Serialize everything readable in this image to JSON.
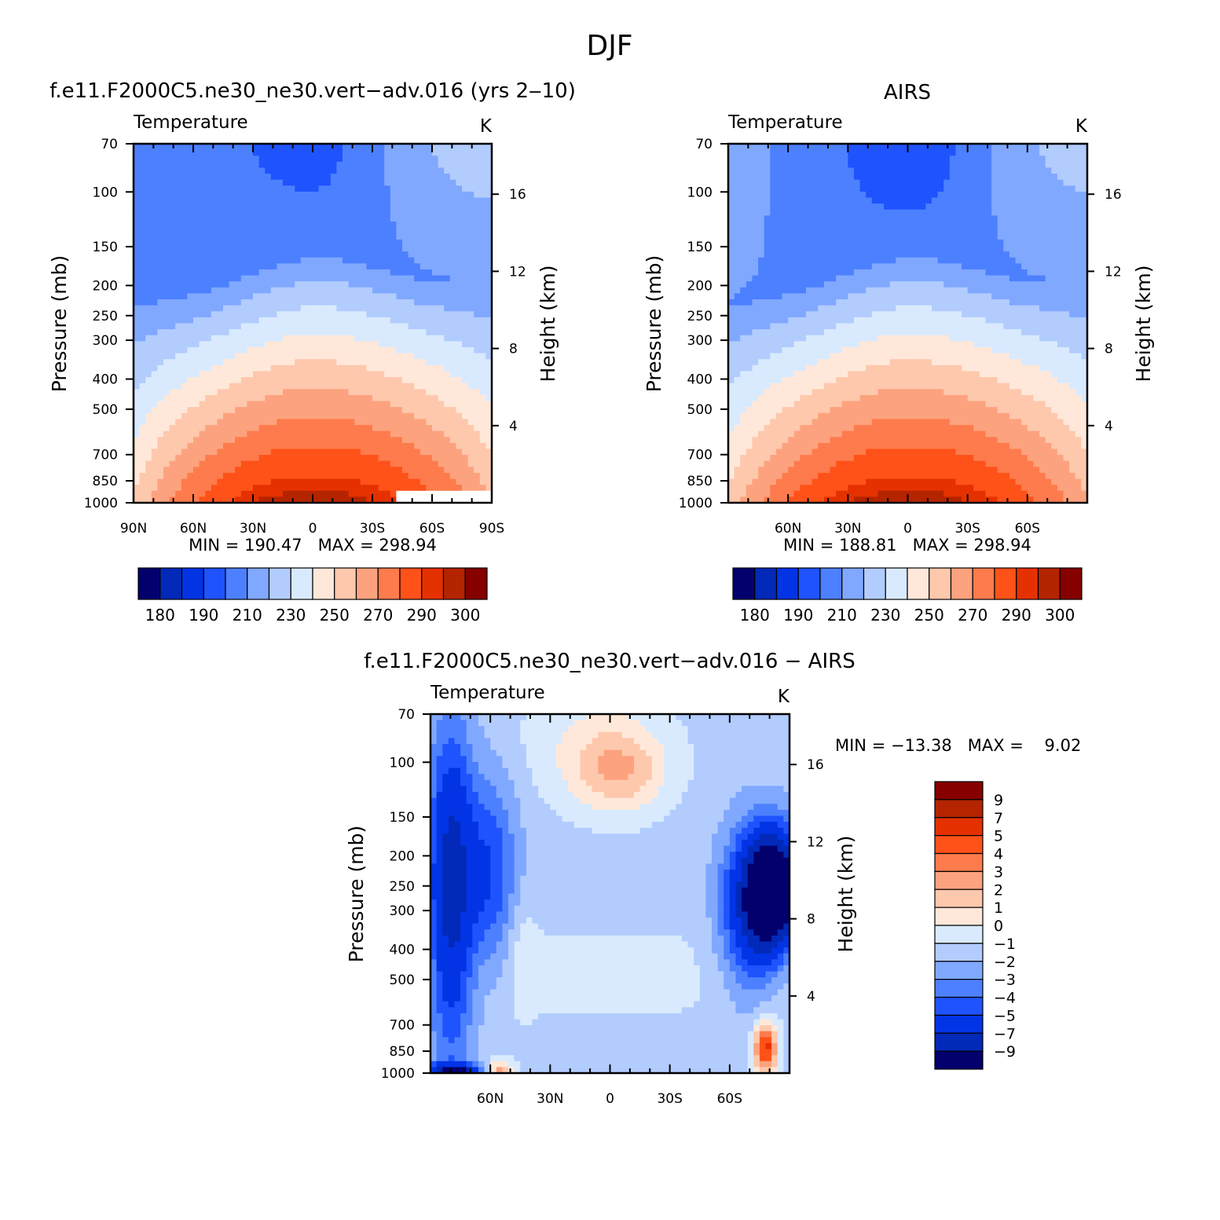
{
  "figure_title": "DJF",
  "chart_data": [
    {
      "type": "heatmap",
      "title": "f.e11.F2000C5.ne30_ne30.vert−adv.016 (yrs 2‒10)",
      "subtitle_left": "Temperature",
      "subtitle_right": "K",
      "xlabel": "",
      "ylabel": "Pressure (mb)",
      "ylabel_right": "Height (km)",
      "x_ticks": [
        "90N",
        "60N",
        "30N",
        "0",
        "30S",
        "60S",
        "90S"
      ],
      "x_tick_values": [
        90,
        60,
        30,
        0,
        -30,
        -60,
        -90
      ],
      "y_ticks": [
        70,
        100,
        150,
        200,
        250,
        300,
        400,
        500,
        700,
        850,
        1000
      ],
      "y_scale": "log",
      "height_ticks": [
        16,
        12,
        8,
        4
      ],
      "stats": "MIN = 190.47   MAX = 298.94",
      "min": 190.47,
      "max": 298.94,
      "colorbar_labels": [
        "180",
        "190",
        "210",
        "230",
        "250",
        "270",
        "290",
        "300"
      ],
      "contour_levels": [
        180,
        185,
        190,
        200,
        210,
        220,
        230,
        240,
        250,
        260,
        270,
        280,
        290,
        295,
        300
      ],
      "params": {
        "kind": "temp",
        "polar_top": [
          205,
          225
        ],
        "eq_top": 197,
        "surface": [
          252,
          299
        ],
        "mask_sh": true
      }
    },
    {
      "type": "heatmap",
      "title": "AIRS",
      "subtitle_left": "Temperature",
      "subtitle_right": "K",
      "xlabel": "",
      "ylabel": "Pressure (mb)",
      "ylabel_right": "Height (km)",
      "x_ticks": [
        "60N",
        "30N",
        "0",
        "30S",
        "60S"
      ],
      "x_tick_values": [
        60,
        30,
        0,
        -30,
        -60
      ],
      "y_ticks": [
        70,
        100,
        150,
        200,
        250,
        300,
        400,
        500,
        700,
        850,
        1000
      ],
      "y_scale": "log",
      "height_ticks": [
        16,
        12,
        8,
        4
      ],
      "stats": "MIN = 188.81   MAX = 298.94",
      "min": 188.81,
      "max": 298.94,
      "colorbar_labels": [
        "180",
        "190",
        "210",
        "230",
        "250",
        "270",
        "290",
        "300"
      ],
      "contour_levels": [
        180,
        185,
        190,
        200,
        210,
        220,
        230,
        240,
        250,
        260,
        270,
        280,
        290,
        295,
        300
      ],
      "params": {
        "kind": "temp",
        "polar_top": [
          212,
          224
        ],
        "eq_top": 193,
        "surface": [
          253,
          299
        ],
        "mask_sh": false
      }
    },
    {
      "type": "heatmap",
      "title": "f.e11.F2000C5.ne30_ne30.vert−adv.016 − AIRS",
      "subtitle_left": "Temperature",
      "subtitle_right": "K",
      "xlabel": "",
      "ylabel": "Pressure (mb)",
      "ylabel_right": "Height (km)",
      "x_ticks": [
        "60N",
        "30N",
        "0",
        "30S",
        "60S"
      ],
      "x_tick_values": [
        60,
        30,
        0,
        -30,
        -60
      ],
      "y_ticks": [
        70,
        100,
        150,
        200,
        250,
        300,
        400,
        500,
        700,
        850,
        1000
      ],
      "y_scale": "log",
      "height_ticks": [
        16,
        12,
        8,
        4
      ],
      "stats": "MIN = −13.38   MAX =    9.02",
      "min": -13.38,
      "max": 9.02,
      "colorbar_labels": [
        "9",
        "7",
        "5",
        "4",
        "3",
        "2",
        "1",
        "0",
        "−1",
        "−2",
        "−3",
        "−4",
        "−5",
        "−7",
        "−9"
      ],
      "contour_levels": [
        -9,
        -7,
        -5,
        -4,
        -3,
        -2,
        -1,
        0,
        1,
        2,
        3,
        4,
        5,
        7,
        9
      ],
      "params": {
        "kind": "diff"
      }
    }
  ],
  "colors": [
    "#03006d",
    "#0229b8",
    "#0234e6",
    "#1f53fd",
    "#4d80fe",
    "#80a8fe",
    "#b2ccfe",
    "#d9eafe",
    "#ffe8d9",
    "#fec8ad",
    "#fda27e",
    "#fd7b4c",
    "#fe5219",
    "#e53100",
    "#b42400",
    "#860000"
  ]
}
